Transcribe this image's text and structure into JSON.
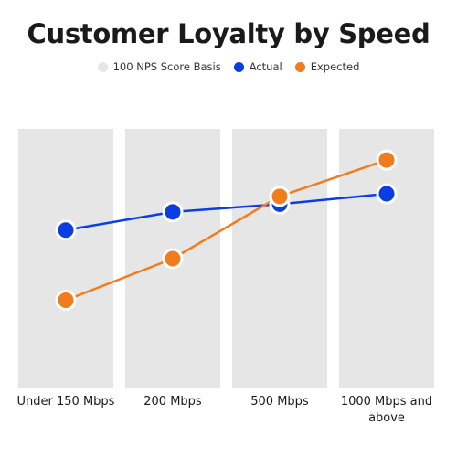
{
  "chart_data": {
    "type": "line",
    "title": "Customer Loyalty by Speed",
    "categories": [
      "Under 150 Mbps",
      "200 Mbps",
      "500 Mbps",
      "1000 Mbps and above"
    ],
    "series": [
      {
        "name": "100 NPS Score Basis",
        "color": "#e6e6e6",
        "values": [
          100,
          100,
          100,
          100
        ],
        "style": "column"
      },
      {
        "name": "Actual",
        "color": "#0a3ee0",
        "values": [
          61,
          68,
          71,
          75
        ],
        "style": "line"
      },
      {
        "name": "Expected",
        "color": "#f07c1e",
        "values": [
          34,
          50,
          74,
          88
        ],
        "style": "line"
      }
    ],
    "ylim": [
      0,
      100
    ],
    "grid": false,
    "legend_position": "top-center"
  }
}
